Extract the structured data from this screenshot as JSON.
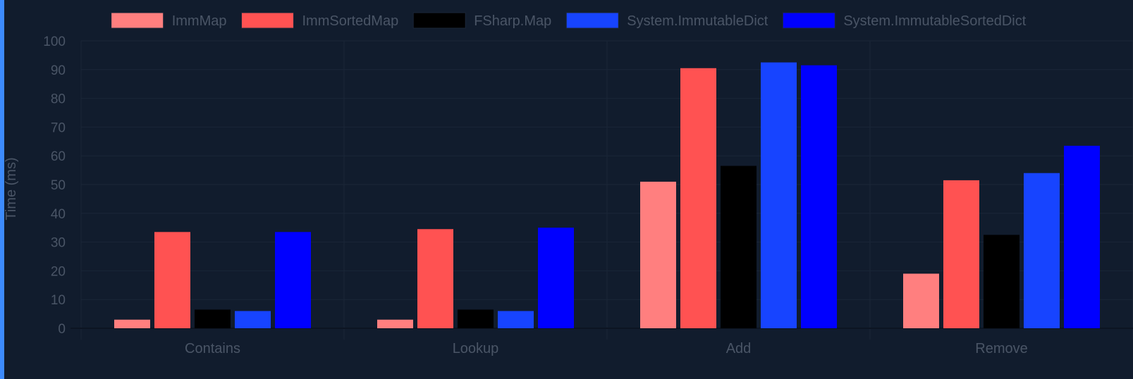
{
  "colors": {
    "background": "#111c2d",
    "accent": "#3d8bfd",
    "grid": "#1a2638",
    "text": "#4a5566"
  },
  "chart_data": {
    "type": "bar",
    "title": "",
    "xlabel": "",
    "ylabel": "Time (ms)",
    "ylim": [
      0,
      100
    ],
    "yticks": [
      0,
      10,
      20,
      30,
      40,
      50,
      60,
      70,
      80,
      90,
      100
    ],
    "grid": true,
    "legend_position": "top",
    "categories": [
      "Contains",
      "Lookup",
      "Add",
      "Remove"
    ],
    "series": [
      {
        "name": "ImmMap",
        "color": "#ff7f7f",
        "values": [
          3,
          3,
          51,
          19
        ]
      },
      {
        "name": "ImmSortedMap",
        "color": "#ff5252",
        "values": [
          33.5,
          34.5,
          90.5,
          51.5
        ]
      },
      {
        "name": "FSharp.Map",
        "color": "#000000",
        "values": [
          6.5,
          6.5,
          56.5,
          32.5
        ]
      },
      {
        "name": "System.ImmutableDict",
        "color": "#1744ff",
        "values": [
          6,
          6,
          92.5,
          54
        ]
      },
      {
        "name": "System.ImmutableSortedDict",
        "color": "#0000ff",
        "values": [
          33.5,
          35,
          91.5,
          63.5
        ]
      }
    ]
  }
}
